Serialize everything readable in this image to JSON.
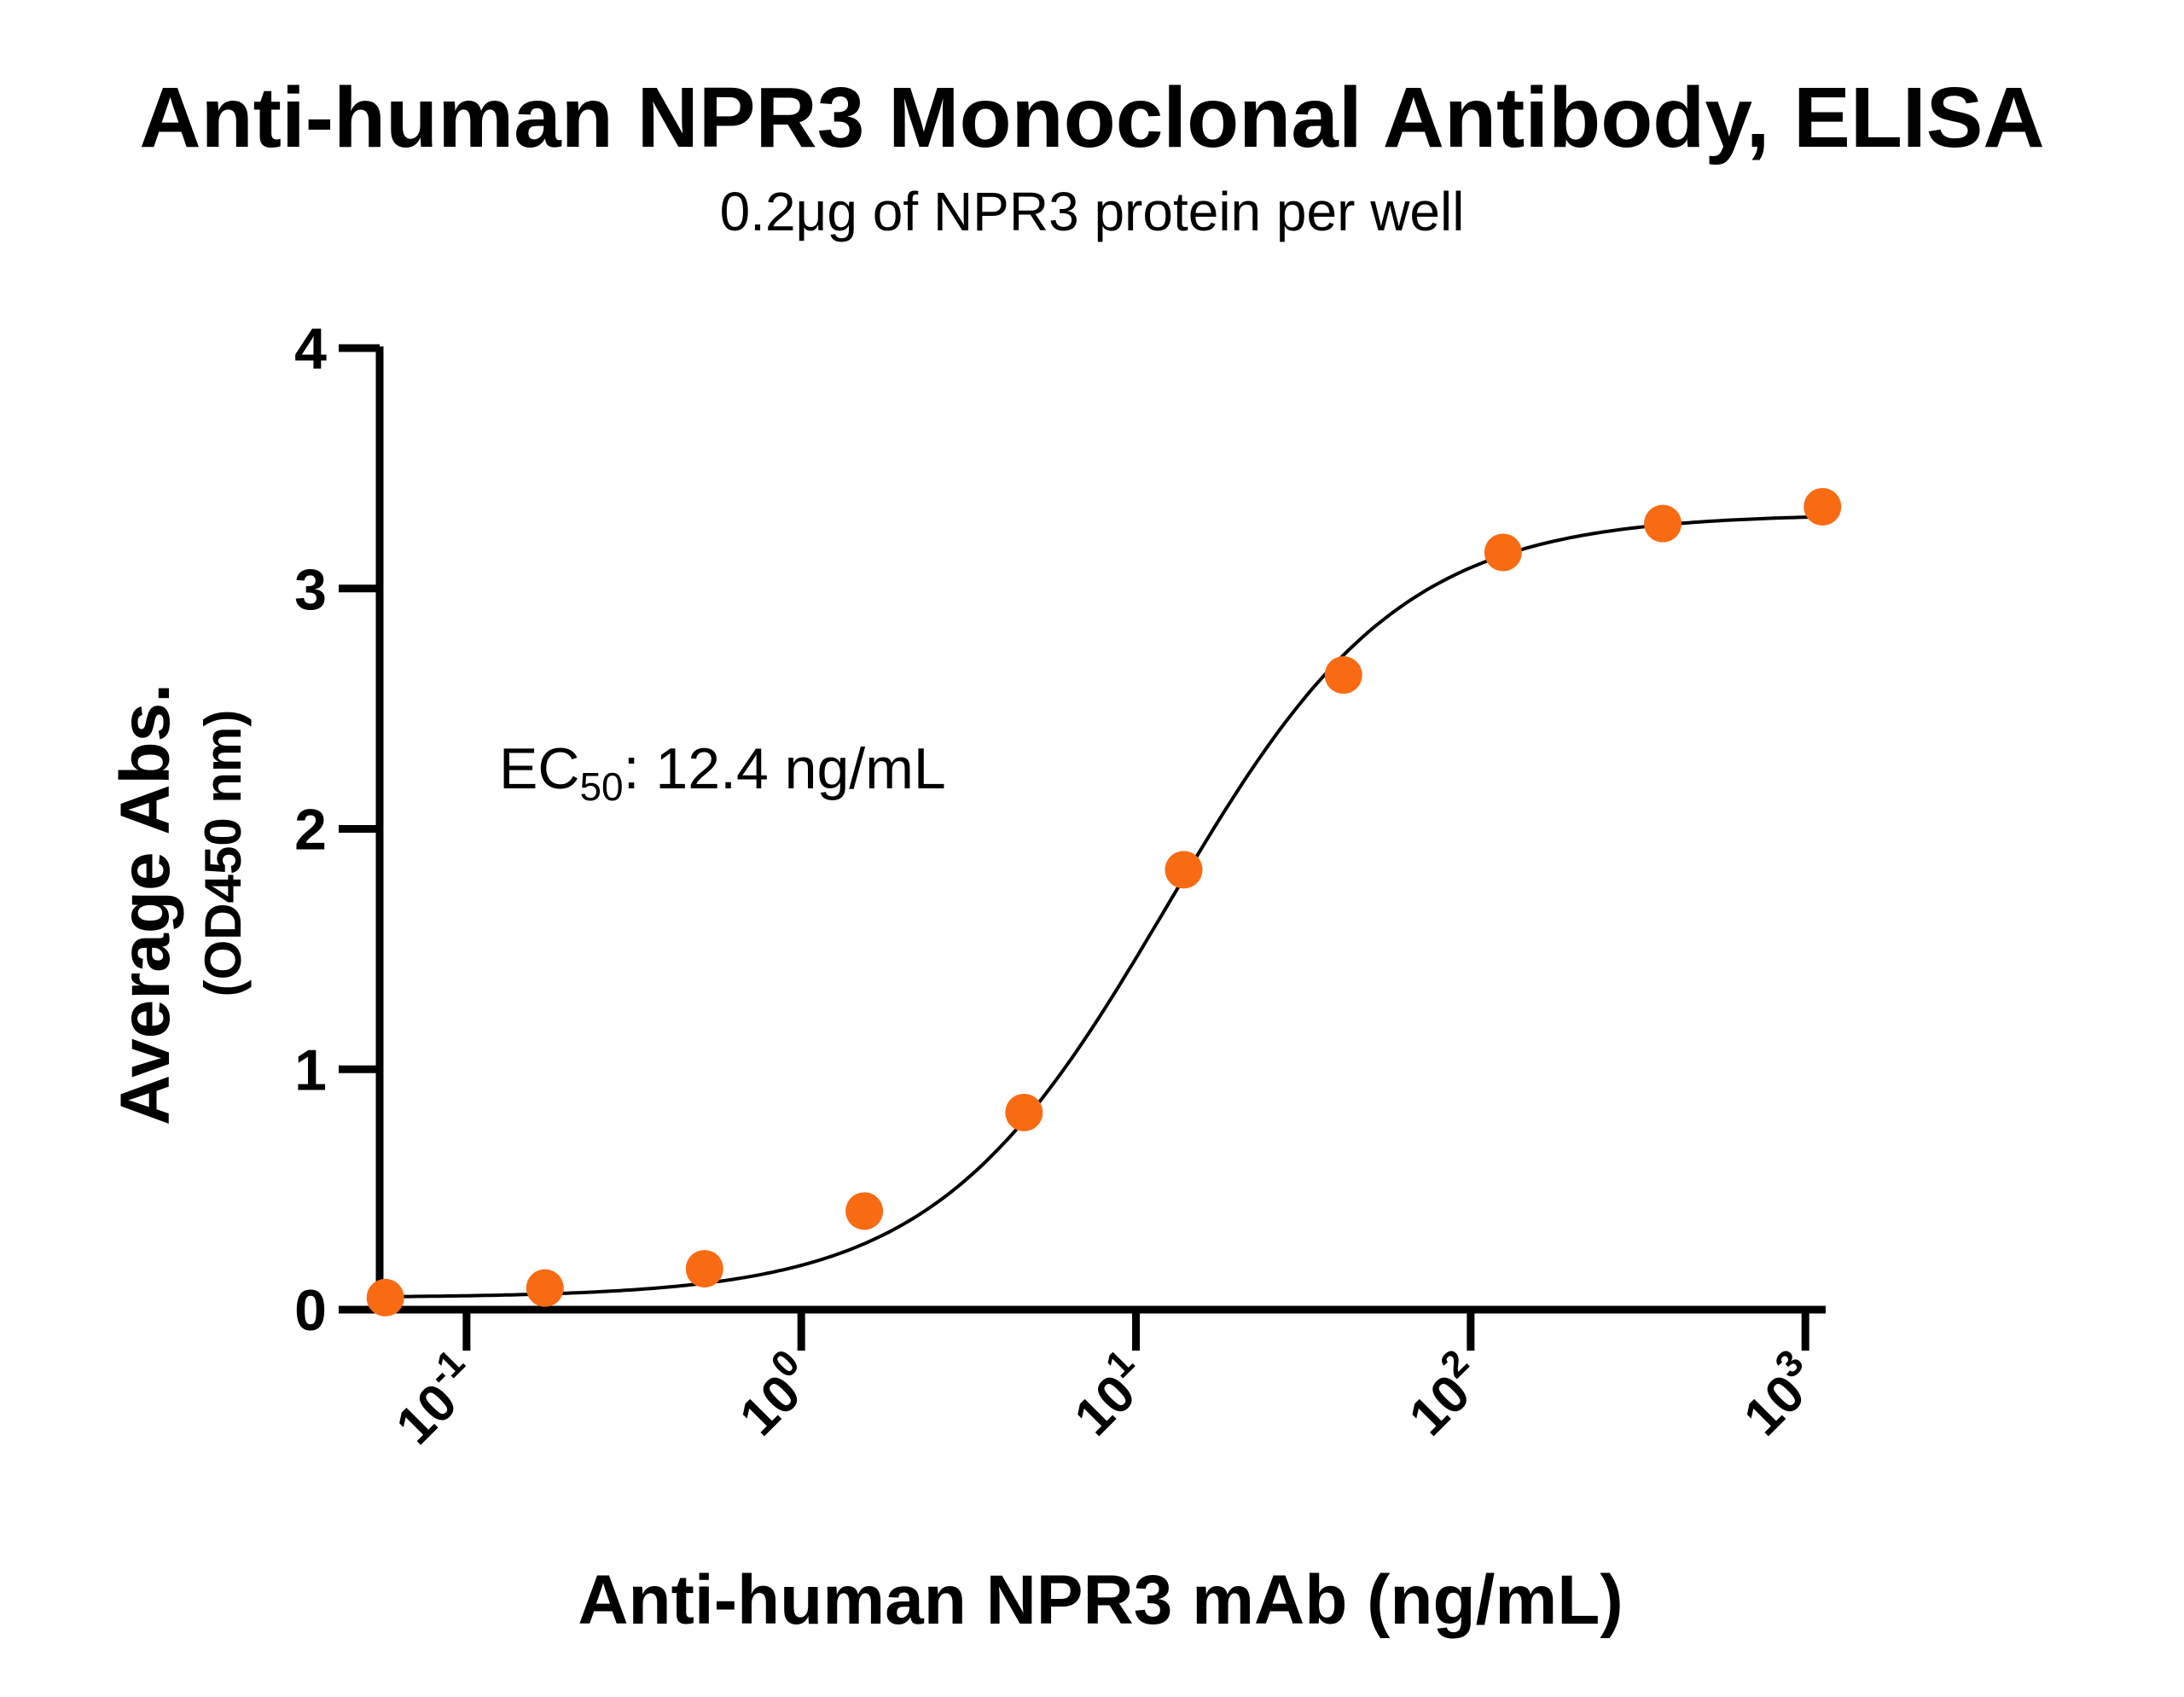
{
  "chart_data": {
    "type": "scatter",
    "title": "Anti-human NPR3 Monoclonal Antibody, ELISA",
    "subtitle": "0.2μg of NPR3 protein per well",
    "xlabel": "Anti-human NPR3 mAb (ng/mL)",
    "ylabel": "Average Abs.",
    "ylabel_secondary": "(OD450 nm)",
    "x_scale": "log",
    "xlim": [
      0.055,
      1150
    ],
    "ylim": [
      0,
      4
    ],
    "x_ticks": [
      {
        "value": 0.1,
        "base": "10",
        "exp": "-1"
      },
      {
        "value": 1,
        "base": "10",
        "exp": "0"
      },
      {
        "value": 10,
        "base": "10",
        "exp": "1"
      },
      {
        "value": 100,
        "base": "10",
        "exp": "2"
      },
      {
        "value": 1000,
        "base": "10",
        "exp": "3"
      }
    ],
    "y_ticks": [
      0,
      1,
      2,
      3,
      4
    ],
    "grid": false,
    "series": [
      {
        "color": "#F96B13",
        "x": [
          0.0572,
          0.1715,
          0.514,
          1.543,
          4.63,
          13.89,
          41.67,
          125,
          375,
          1125
        ],
        "y": [
          0.05,
          0.09,
          0.17,
          0.41,
          0.82,
          1.83,
          2.64,
          3.15,
          3.27,
          3.34
        ]
      }
    ],
    "fit": {
      "model": "4PL",
      "bottom": 0.05,
      "top": 3.31,
      "ec50": 12.4,
      "hill": 1.25,
      "color": "#000000"
    },
    "annotation": {
      "prefix": "EC",
      "subscript": "50",
      "suffix": ": 12.4 ng/mL"
    }
  }
}
